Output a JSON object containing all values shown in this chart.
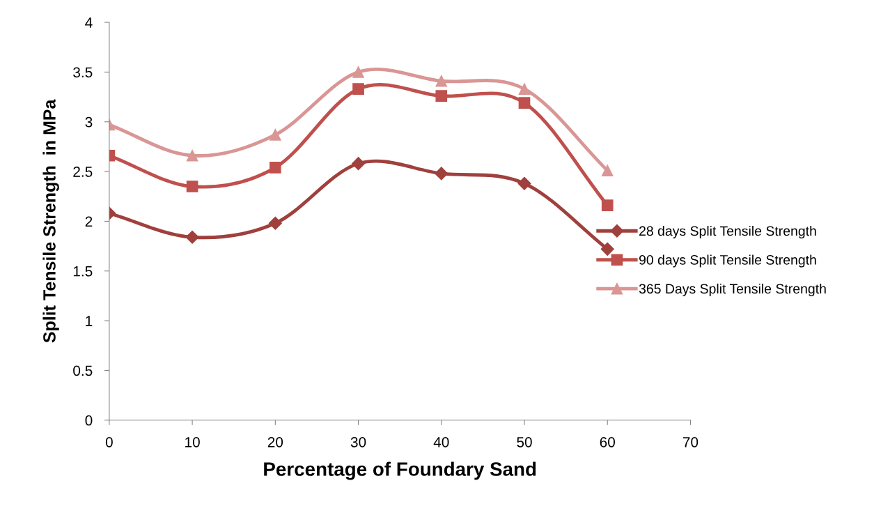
{
  "chart_data": {
    "type": "line",
    "xlabel": "Percentage of Foundary Sand",
    "ylabel": "Split Tensile Strength  in MPa",
    "x": [
      0,
      10,
      20,
      30,
      40,
      50,
      60
    ],
    "series": [
      {
        "name": "28 days Split Tensile Strength",
        "color": "#a0403d",
        "marker": "diamond",
        "values": [
          2.08,
          1.84,
          1.98,
          2.58,
          2.48,
          2.38,
          1.72
        ]
      },
      {
        "name": "90 days Split Tensile Strength",
        "color": "#c0504d",
        "marker": "square",
        "values": [
          2.66,
          2.35,
          2.54,
          3.33,
          3.26,
          3.19,
          2.16
        ]
      },
      {
        "name": "365 Days Split Tensile Strength",
        "color": "#d99694",
        "marker": "triangle",
        "values": [
          2.97,
          2.66,
          2.87,
          3.5,
          3.41,
          3.33,
          2.51
        ]
      }
    ],
    "xlim": [
      0,
      70
    ],
    "xticks": [
      0,
      10,
      20,
      30,
      40,
      50,
      60,
      70
    ],
    "ylim": [
      0,
      4
    ],
    "yticks": [
      0,
      0.5,
      1,
      1.5,
      2,
      2.5,
      3,
      3.5,
      4
    ],
    "grid": false,
    "legend": "right",
    "line_style": "solid"
  }
}
